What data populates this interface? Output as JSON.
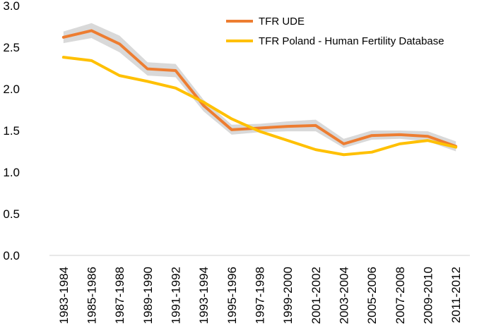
{
  "chart_data": {
    "type": "line",
    "title": "",
    "xlabel": "",
    "ylabel": "",
    "ylim": [
      0,
      3
    ],
    "yticks": [
      "0.0",
      "0.5",
      "1.0",
      "1.5",
      "2.0",
      "2.5",
      "3.0"
    ],
    "ytick_values": [
      0,
      0.5,
      1.0,
      1.5,
      2.0,
      2.5,
      3.0
    ],
    "categories": [
      "1983-1984",
      "1985-1986",
      "1987-1988",
      "1989-1990",
      "1991-1992",
      "1993-1994",
      "1995-1996",
      "1997-1998",
      "1999-2000",
      "2001-2002",
      "2003-2004",
      "2005-2006",
      "2007-2008",
      "2009-2010",
      "2011-2012"
    ],
    "legend_position": "top-right",
    "grid": false,
    "series": [
      {
        "name": "TFR UDE",
        "color": "#ED7D31",
        "values": [
          2.62,
          2.7,
          2.54,
          2.24,
          2.22,
          1.8,
          1.51,
          1.53,
          1.55,
          1.56,
          1.34,
          1.44,
          1.45,
          1.43,
          1.31
        ],
        "band_lower": [
          2.55,
          2.61,
          2.44,
          2.16,
          2.14,
          1.73,
          1.45,
          1.48,
          1.49,
          1.49,
          1.29,
          1.39,
          1.4,
          1.37,
          1.25
        ],
        "band_upper": [
          2.69,
          2.79,
          2.64,
          2.32,
          2.3,
          1.87,
          1.57,
          1.58,
          1.61,
          1.63,
          1.4,
          1.5,
          1.5,
          1.49,
          1.37
        ],
        "band_color": "#D9D9D9"
      },
      {
        "name": "TFR Poland - Human Fertility Database",
        "color": "#FFC000",
        "values": [
          2.38,
          2.34,
          2.16,
          2.09,
          2.01,
          1.84,
          1.64,
          1.49,
          1.38,
          1.27,
          1.21,
          1.24,
          1.34,
          1.38,
          1.3
        ]
      }
    ]
  }
}
